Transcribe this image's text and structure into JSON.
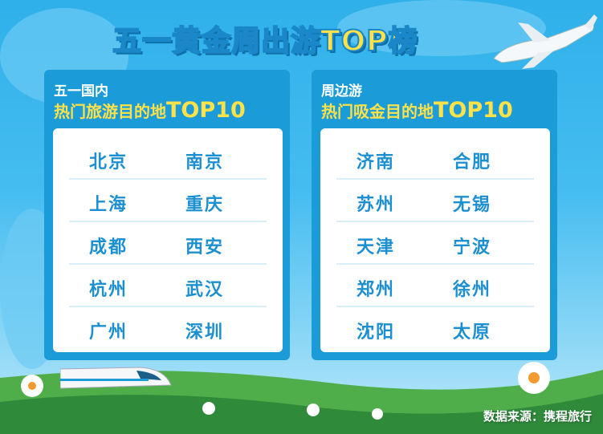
{
  "title": {
    "main": "五一黄金周出游",
    "accent": "TOP榜"
  },
  "panels": [
    {
      "line1": "五一国内",
      "line2": "热门旅游目的地",
      "line2_accent": "TOP10",
      "rows": [
        [
          "北京",
          "南京"
        ],
        [
          "上海",
          "重庆"
        ],
        [
          "成都",
          "西安"
        ],
        [
          "杭州",
          "武汉"
        ],
        [
          "广州",
          "深圳"
        ]
      ]
    },
    {
      "line1": "周边游",
      "line2": "热门吸金目的地",
      "line2_accent": "TOP10",
      "rows": [
        [
          "济南",
          "合肥"
        ],
        [
          "苏州",
          "无锡"
        ],
        [
          "天津",
          "宁波"
        ],
        [
          "郑州",
          "徐州"
        ],
        [
          "沈阳",
          "太原"
        ]
      ]
    }
  ],
  "source": "数据来源：携程旅行",
  "colors": {
    "panel": "#1b9cd8",
    "city": "#1b8fd0",
    "accent": "#ffe14a"
  }
}
